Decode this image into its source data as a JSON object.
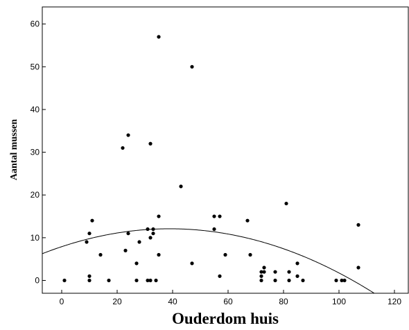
{
  "chart_data": {
    "type": "scatter",
    "title": "",
    "xlabel": "Ouderdom huis",
    "ylabel": "Aantal mussen",
    "xlim": [
      -7,
      125
    ],
    "ylim": [
      -3,
      64
    ],
    "xticks": [
      "0",
      "20",
      "40",
      "60",
      "80",
      "100",
      "120"
    ],
    "yticks": [
      "0",
      "10",
      "20",
      "30",
      "40",
      "50",
      "60"
    ],
    "grid": false,
    "point_color": "#000000",
    "series": [
      {
        "points": [
          [
            1,
            0
          ],
          [
            9,
            9
          ],
          [
            10,
            11
          ],
          [
            10,
            1
          ],
          [
            10,
            0
          ],
          [
            11,
            14
          ],
          [
            14,
            6
          ],
          [
            17,
            0
          ],
          [
            22,
            31
          ],
          [
            23,
            7
          ],
          [
            24,
            34
          ],
          [
            24,
            11
          ],
          [
            27,
            4
          ],
          [
            27,
            0
          ],
          [
            28,
            9
          ],
          [
            31,
            12
          ],
          [
            31,
            0
          ],
          [
            32,
            32
          ],
          [
            32,
            10
          ],
          [
            32,
            0
          ],
          [
            33,
            12
          ],
          [
            33,
            11
          ],
          [
            34,
            0
          ],
          [
            35,
            57
          ],
          [
            35,
            15
          ],
          [
            35,
            6
          ],
          [
            43,
            22
          ],
          [
            47,
            50
          ],
          [
            47,
            4
          ],
          [
            55,
            15
          ],
          [
            55,
            12
          ],
          [
            57,
            15
          ],
          [
            57,
            1
          ],
          [
            59,
            6
          ],
          [
            67,
            14
          ],
          [
            68,
            6
          ],
          [
            72,
            2
          ],
          [
            72,
            1
          ],
          [
            72,
            0
          ],
          [
            73,
            3
          ],
          [
            73,
            2
          ],
          [
            77,
            2
          ],
          [
            77,
            0
          ],
          [
            81,
            18
          ],
          [
            82,
            2
          ],
          [
            82,
            0
          ],
          [
            85,
            4
          ],
          [
            85,
            1
          ],
          [
            87,
            0
          ],
          [
            99,
            0
          ],
          [
            101,
            0
          ],
          [
            102,
            0
          ],
          [
            107,
            13
          ],
          [
            107,
            3
          ]
        ]
      }
    ],
    "fit_line": {
      "type": "quadratic",
      "coefficients": {
        "a": -0.00277,
        "b": 0.2155,
        "c": 7.9
      },
      "color": "#000000"
    }
  }
}
